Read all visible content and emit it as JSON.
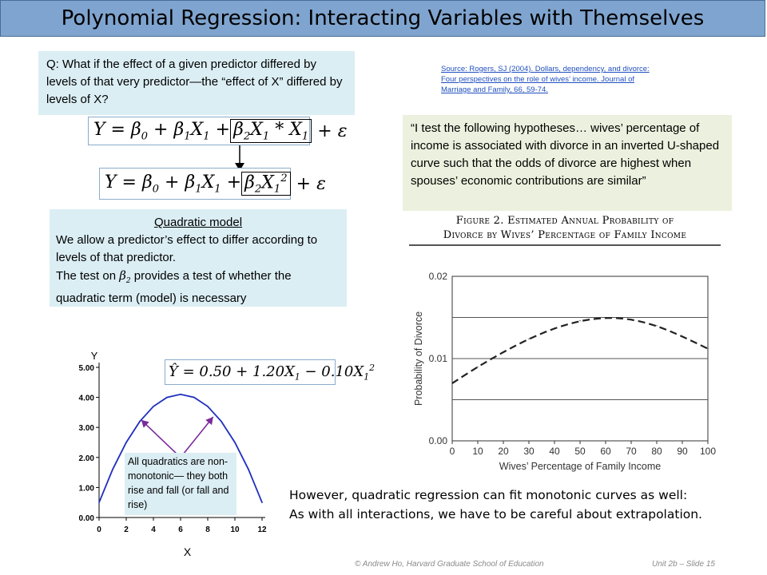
{
  "title": "Polynomial Regression: Interacting Variables with Themselves",
  "question": "Q: What if the effect of a given predictor differed by levels of that very predictor—the “effect of X” differed by levels of X?",
  "equations": {
    "interaction": "Y = β0 + β1X1 + β2X1*X1 + ε",
    "quadratic": "Y = β0 + β1X1 + β2X1² + ε",
    "fitted": "Ŷ = 0.50 + 1.20X1 − 0.10X1²"
  },
  "quadratic_box": {
    "heading": "Quadratic model",
    "line1": "We allow a predictor’s effect to differ according to levels of that predictor.",
    "line2_prefix": "The test on",
    "line2_suffix": "provides a test of whether the quadratic term (model) is necessary"
  },
  "source": {
    "line1": "Source: Rogers, SJ (2004). Dollars, dependency, and divorce:",
    "line2": "Four perspectives on the role of wives’ income. Journal of",
    "line3": "Marriage and Family, 66, 59-74."
  },
  "quote": "“I test the following hypotheses… wives’ percentage of income is associated with divorce in an inverted U-shaped curve such that the odds of divorce are highest when spouses’ economic contributions are similar”",
  "figure": {
    "caption_line1": "Figure 2. Estimated Annual Probability of",
    "caption_line2": "Divorce by Wives’ Percentage of Family Income"
  },
  "callout": "All quadratics are non-monotonic— they both rise and fall (or fall and rise)",
  "bottom_text": {
    "line1": "However, quadratic regression can fit monotonic curves as well:",
    "line2": "As with all interactions, we have to be careful about extrapolation."
  },
  "footer": {
    "left": "© Andrew Ho, Harvard Graduate School of Education",
    "right": "Unit 2b – Slide 15"
  },
  "colors": {
    "title_bg": "#7fa4cf",
    "curve_blue": "#1f2fbf",
    "arrow_purple": "#7a2a9a",
    "box_blue": "#dbeef4",
    "box_green": "#ebf1de"
  },
  "chart_data": [
    {
      "type": "line",
      "title": "",
      "xlabel": "X",
      "ylabel": "Y",
      "x_ticks": [
        "0",
        "2",
        "4",
        "6",
        "8",
        "10",
        "12"
      ],
      "y_ticks": [
        "0.00",
        "1.00",
        "2.00",
        "3.00",
        "4.00",
        "5.00"
      ],
      "xlim": [
        0,
        12
      ],
      "ylim": [
        0,
        5
      ],
      "series": [
        {
          "x": [
            0,
            1,
            2,
            3,
            4,
            5,
            6,
            7,
            8,
            9,
            10,
            11,
            12
          ],
          "y": [
            0.5,
            1.6,
            2.5,
            3.2,
            3.7,
            4.0,
            4.1,
            4.0,
            3.7,
            3.2,
            2.5,
            1.6,
            0.5
          ]
        }
      ]
    },
    {
      "type": "line",
      "title": "",
      "xlabel": "Wives’ Percentage of Family Income",
      "ylabel": "Probability of Divorce",
      "x_ticks": [
        "0",
        "10",
        "20",
        "30",
        "40",
        "50",
        "60",
        "70",
        "80",
        "90",
        "100"
      ],
      "y_ticks": [
        "0.00",
        "0.01",
        "0.02"
      ],
      "xlim": [
        0,
        100
      ],
      "ylim": [
        0,
        0.02
      ],
      "series": [
        {
          "x": [
            0,
            10,
            20,
            30,
            40,
            50,
            60,
            70,
            80,
            90,
            100
          ],
          "y": [
            0.007,
            0.009,
            0.0108,
            0.0124,
            0.0137,
            0.0146,
            0.015,
            0.0148,
            0.014,
            0.0127,
            0.0112
          ]
        }
      ]
    }
  ]
}
